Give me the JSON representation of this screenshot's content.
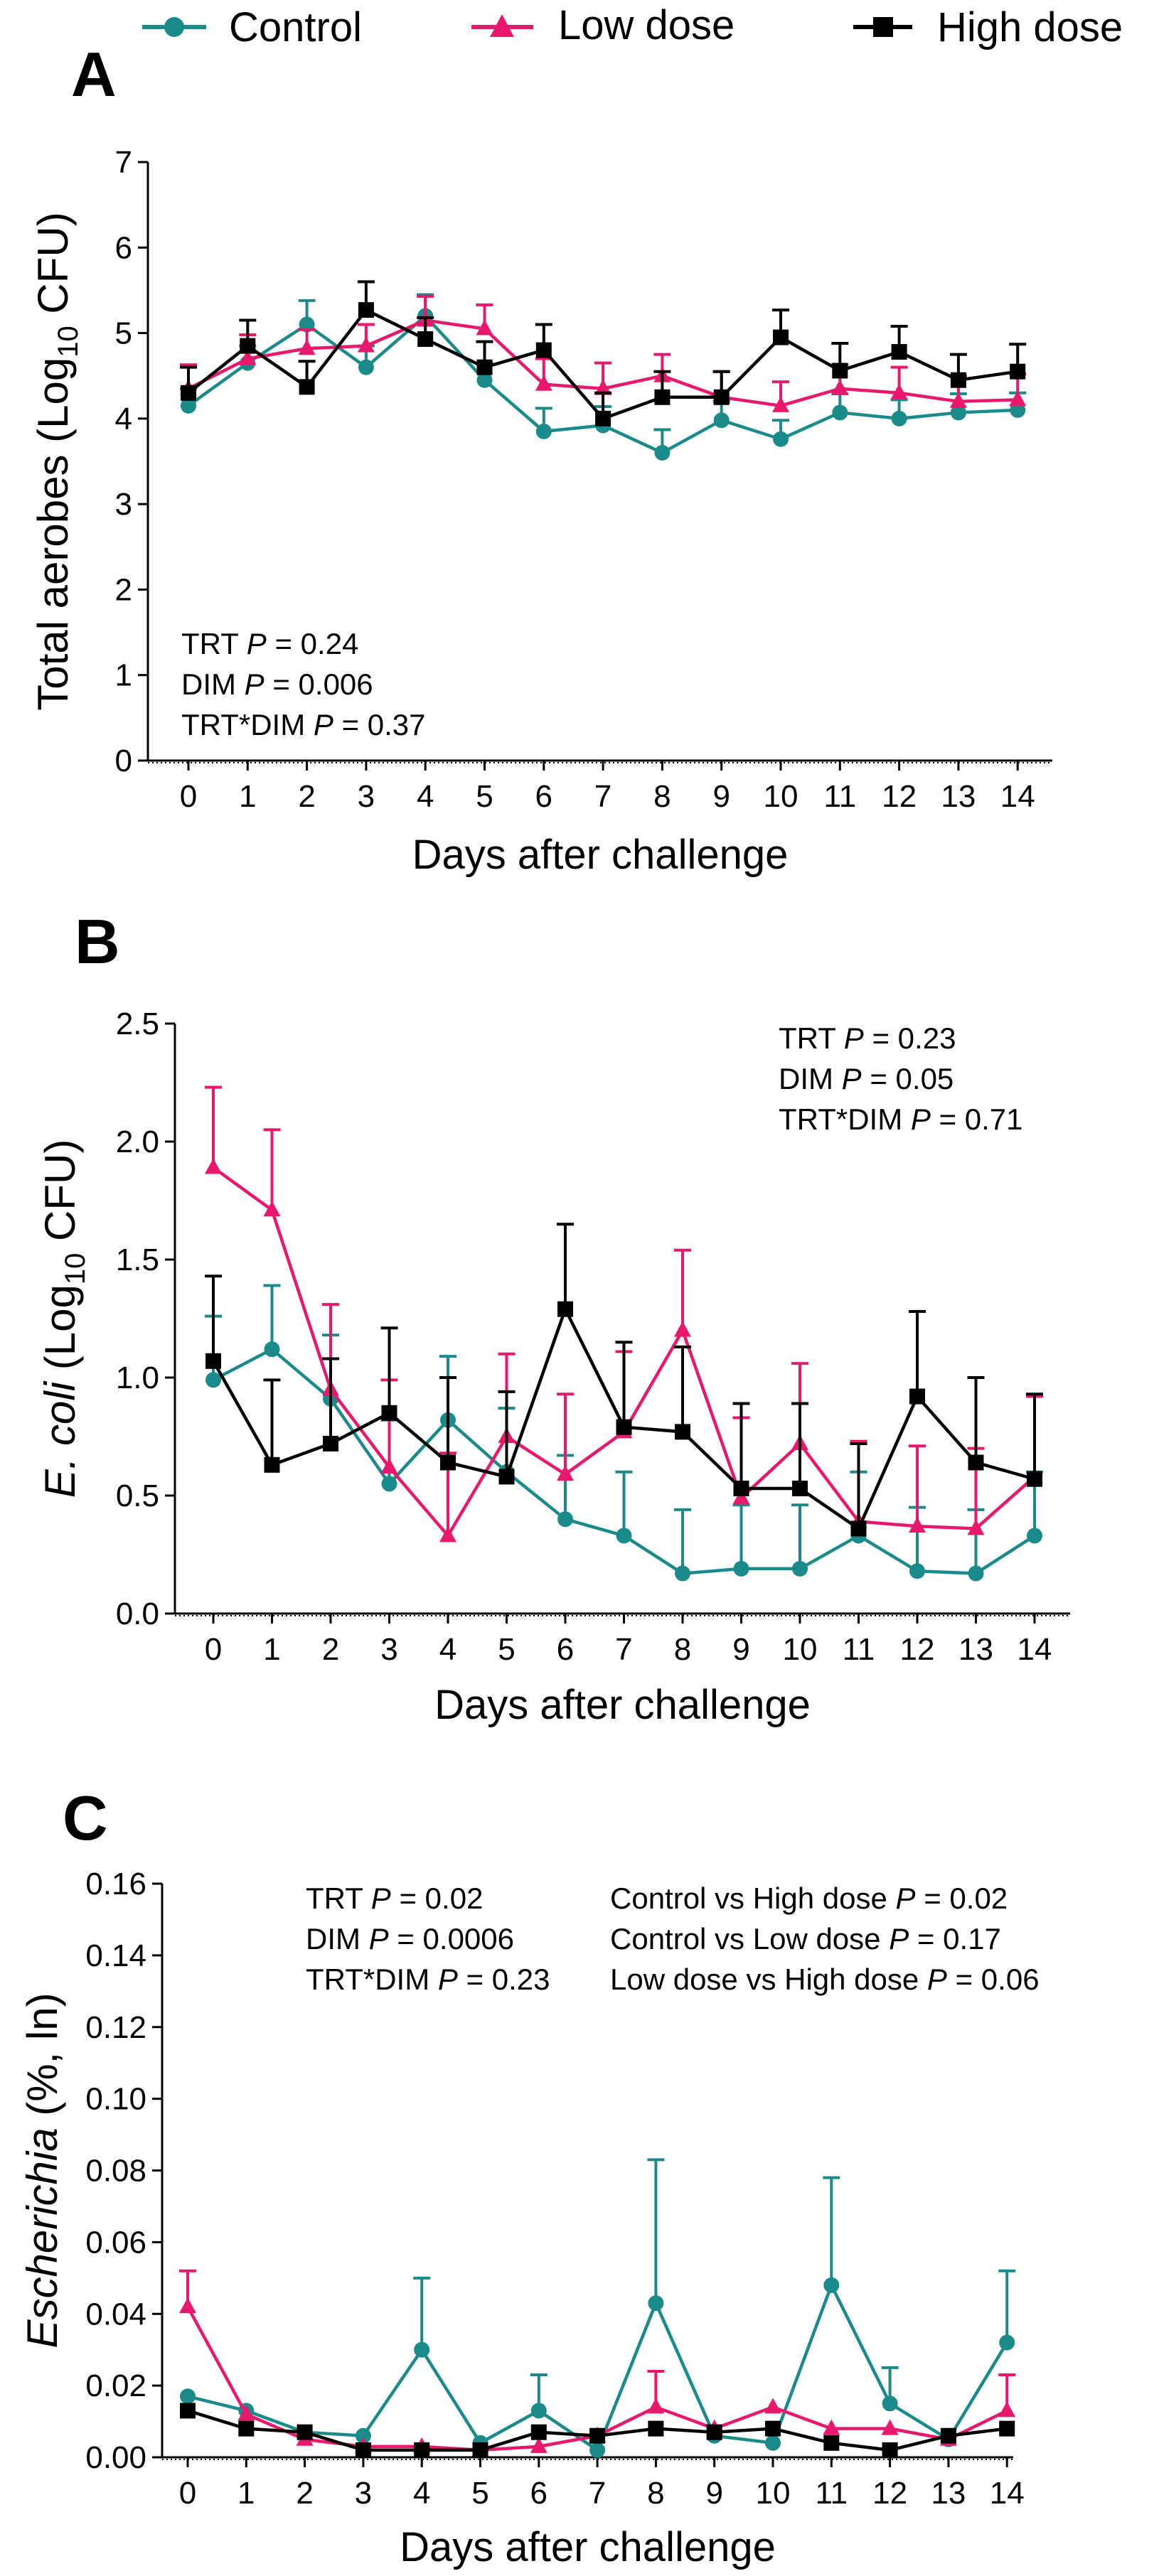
{
  "legend": {
    "items": [
      {
        "label": "Control",
        "color": "#1b8a8a",
        "marker": "circle"
      },
      {
        "label": "Low dose",
        "color": "#e8186d",
        "marker": "triangle"
      },
      {
        "label": "High dose",
        "color": "#000000",
        "marker": "square"
      }
    ]
  },
  "chart_data": [
    {
      "type": "line",
      "panel_label": "A",
      "title": "",
      "xlabel": "Days after challenge",
      "ylabel": "Total aerobes (Log",
      "ylabel_sub": "10",
      "ylabel_end": " CFU)",
      "x": [
        0,
        1,
        2,
        3,
        4,
        5,
        6,
        7,
        8,
        9,
        10,
        11,
        12,
        13,
        14
      ],
      "xticks": [
        "0",
        "1",
        "2",
        "3",
        "4",
        "5",
        "6",
        "7",
        "8",
        "9",
        "10",
        "11",
        "12",
        "13",
        "14"
      ],
      "ylim": [
        0,
        7
      ],
      "yticks": [
        0,
        1,
        2,
        3,
        4,
        5,
        6,
        7
      ],
      "ytick_labels": [
        "0",
        "1",
        "2",
        "3",
        "4",
        "5",
        "6",
        "7"
      ],
      "series": [
        {
          "name": "Control",
          "values": [
            4.15,
            4.65,
            5.1,
            4.6,
            5.2,
            4.45,
            3.85,
            3.92,
            3.6,
            3.98,
            3.76,
            4.07,
            4.0,
            4.07,
            4.1
          ],
          "errors": [
            0.2,
            0.2,
            0.28,
            0.25,
            0.25,
            0.2,
            0.27,
            0.22,
            0.27,
            0.22,
            0.22,
            0.22,
            0.22,
            0.22,
            0.2
          ]
        },
        {
          "name": "Low dose",
          "values": [
            4.35,
            4.7,
            4.82,
            4.85,
            5.15,
            5.05,
            4.4,
            4.35,
            4.5,
            4.25,
            4.15,
            4.35,
            4.3,
            4.2,
            4.22
          ],
          "errors": [
            0.28,
            0.28,
            0.22,
            0.25,
            0.28,
            0.28,
            0.3,
            0.3,
            0.25,
            0.3,
            0.28,
            0.28,
            0.3,
            0.3,
            0.3
          ]
        },
        {
          "name": "High dose",
          "values": [
            4.3,
            4.85,
            4.37,
            5.27,
            4.93,
            4.6,
            4.8,
            4.0,
            4.25,
            4.25,
            4.95,
            4.56,
            4.78,
            4.45,
            4.55
          ],
          "errors": [
            0.3,
            0.3,
            0.3,
            0.33,
            0.25,
            0.3,
            0.3,
            0.3,
            0.3,
            0.3,
            0.32,
            0.32,
            0.3,
            0.3,
            0.32
          ]
        }
      ],
      "annotations": [
        [
          "TRT ",
          "P",
          " = 0.24"
        ],
        [
          "DIM ",
          "P",
          " = 0.006"
        ],
        [
          "TRT*DIM ",
          "P",
          " = 0.37"
        ]
      ]
    },
    {
      "type": "line",
      "panel_label": "B",
      "title": "",
      "xlabel": "Days after challenge",
      "ylabel_italic": "E. coli",
      "ylabel": " (Log",
      "ylabel_sub": "10",
      "ylabel_end": " CFU)",
      "x": [
        0,
        1,
        2,
        3,
        4,
        5,
        6,
        7,
        8,
        9,
        10,
        11,
        12,
        13,
        14
      ],
      "xticks": [
        "0",
        "1",
        "2",
        "3",
        "4",
        "5",
        "6",
        "7",
        "8",
        "9",
        "10",
        "11",
        "12",
        "13",
        "14"
      ],
      "ylim": [
        0,
        2.5
      ],
      "yticks": [
        0,
        0.5,
        1.0,
        1.5,
        2.0,
        2.5
      ],
      "ytick_labels": [
        "0.0",
        "0.5",
        "1.0",
        "1.5",
        "2.0",
        "2.5"
      ],
      "series": [
        {
          "name": "Control",
          "values": [
            0.99,
            1.12,
            0.91,
            0.55,
            0.82,
            0.6,
            0.4,
            0.33,
            0.17,
            0.19,
            0.19,
            0.33,
            0.18,
            0.17,
            0.33
          ],
          "errors": [
            0.27,
            0.27,
            0.27,
            0.27,
            0.27,
            0.27,
            0.27,
            0.27,
            0.27,
            0.27,
            0.27,
            0.27,
            0.27,
            0.27,
            0.27
          ]
        },
        {
          "name": "Low dose",
          "values": [
            1.89,
            1.71,
            0.95,
            0.62,
            0.33,
            0.75,
            0.59,
            0.77,
            1.2,
            0.49,
            0.72,
            0.39,
            0.37,
            0.36,
            0.58
          ],
          "errors": [
            0.34,
            0.34,
            0.36,
            0.37,
            0.35,
            0.35,
            0.34,
            0.34,
            0.34,
            0.34,
            0.34,
            0.34,
            0.34,
            0.34,
            0.34
          ]
        },
        {
          "name": "High dose",
          "values": [
            1.07,
            0.63,
            0.72,
            0.85,
            0.64,
            0.58,
            1.29,
            0.79,
            0.77,
            0.53,
            0.53,
            0.36,
            0.92,
            0.64,
            0.57
          ],
          "errors": [
            0.36,
            0.36,
            0.36,
            0.36,
            0.36,
            0.36,
            0.36,
            0.36,
            0.36,
            0.36,
            0.36,
            0.36,
            0.36,
            0.36,
            0.36
          ]
        }
      ],
      "annotations": [
        [
          "TRT ",
          "P",
          " = 0.23"
        ],
        [
          "DIM ",
          "P",
          " = 0.05"
        ],
        [
          "TRT*DIM ",
          "P",
          " = 0.71"
        ]
      ]
    },
    {
      "type": "line",
      "panel_label": "C",
      "title": "",
      "xlabel": "Days after challenge",
      "ylabel_italic": "Escherichia",
      "ylabel": " (%, ln)",
      "ylabel_sub": "",
      "ylabel_end": "",
      "x": [
        0,
        1,
        2,
        3,
        4,
        5,
        6,
        7,
        8,
        9,
        10,
        11,
        12,
        13,
        14
      ],
      "xticks": [
        "0",
        "1",
        "2",
        "3",
        "4",
        "5",
        "6",
        "7",
        "8",
        "9",
        "10",
        "11",
        "12",
        "13",
        "14"
      ],
      "ylim": [
        0,
        0.16
      ],
      "yticks": [
        0,
        0.02,
        0.04,
        0.06,
        0.08,
        0.1,
        0.12,
        0.14,
        0.16
      ],
      "ytick_labels": [
        "0.00",
        "0.02",
        "0.04",
        "0.06",
        "0.08",
        "0.10",
        "0.12",
        "0.14",
        "0.16"
      ],
      "series": [
        {
          "name": "Control",
          "values": [
            0.017,
            0.013,
            0.007,
            0.006,
            0.03,
            0.004,
            0.013,
            0.002,
            0.043,
            0.006,
            0.004,
            0.048,
            0.015,
            0.005,
            0.032
          ],
          "errors": [
            0.0,
            0.0,
            0.0,
            0.0,
            0.02,
            0.0,
            0.01,
            0.0,
            0.04,
            0.0,
            0.0,
            0.03,
            0.01,
            0.0,
            0.02
          ]
        },
        {
          "name": "Low dose",
          "values": [
            0.042,
            0.012,
            0.005,
            0.003,
            0.003,
            0.002,
            0.003,
            0.006,
            0.014,
            0.008,
            0.014,
            0.008,
            0.008,
            0.005,
            0.013
          ],
          "errors": [
            0.01,
            0.0,
            0.0,
            0.0,
            0.0,
            0.0,
            0.0,
            0.0,
            0.01,
            0.0,
            0.0,
            0.0,
            0.0,
            0.0,
            0.01
          ]
        },
        {
          "name": "High dose",
          "values": [
            0.013,
            0.008,
            0.007,
            0.002,
            0.002,
            0.002,
            0.007,
            0.006,
            0.008,
            0.007,
            0.008,
            0.004,
            0.002,
            0.006,
            0.008
          ],
          "errors": [
            0.0,
            0.0,
            0.0,
            0.0,
            0.0,
            0.0,
            0.0,
            0.0,
            0.0,
            0.0,
            0.0,
            0.0,
            0.0,
            0.0,
            0.0
          ]
        }
      ],
      "annotations": [
        [
          "TRT ",
          "P",
          " = 0.02"
        ],
        [
          "DIM ",
          "P",
          "  = 0.0006"
        ],
        [
          "TRT*DIM ",
          "P",
          " = 0.23"
        ]
      ],
      "annotations_right": [
        [
          "Control vs High dose ",
          "P",
          " = 0.02"
        ],
        [
          "Control vs Low dose ",
          "P",
          " = 0.17"
        ],
        [
          "Low dose vs High dose ",
          "P",
          " = 0.06"
        ]
      ]
    }
  ]
}
